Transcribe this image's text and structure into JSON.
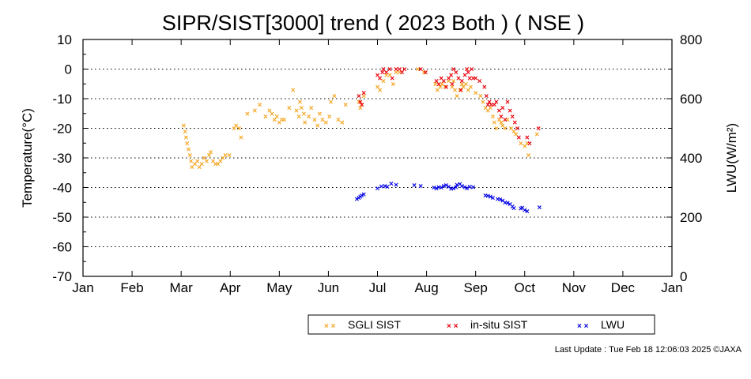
{
  "chart_data": {
    "type": "scatter",
    "title": "SIPR/SIST[3000] trend ( 2023 Both ) ( NSE )",
    "ylabel": "Temperature(°C)",
    "y2label": "LWU(W/m²)",
    "x_tick_labels": [
      "Jan",
      "Feb",
      "Mar",
      "Apr",
      "May",
      "Jun",
      "Jul",
      "Aug",
      "Sep",
      "Oct",
      "Nov",
      "Dec",
      "Jan"
    ],
    "x_unit": "month of year (0 = Jan 1)",
    "xlim": [
      0,
      12
    ],
    "ylim": [
      -70,
      10
    ],
    "y_ticks": [
      10,
      0,
      -10,
      -20,
      -30,
      -40,
      -50,
      -60,
      -70
    ],
    "y2lim": [
      0,
      800
    ],
    "y2_ticks": [
      800,
      600,
      400,
      200,
      0
    ],
    "grid": "horizontal dotted",
    "legend_placement": "bottom-center",
    "series": [
      {
        "name": "SGLI SIST",
        "axis": "left",
        "color": "#f5a623",
        "points": [
          [
            2.05,
            -19
          ],
          [
            2.08,
            -21
          ],
          [
            2.1,
            -23
          ],
          [
            2.12,
            -25
          ],
          [
            2.15,
            -27
          ],
          [
            2.18,
            -29
          ],
          [
            2.2,
            -31
          ],
          [
            2.22,
            -33
          ],
          [
            2.28,
            -32
          ],
          [
            2.33,
            -31
          ],
          [
            2.37,
            -33
          ],
          [
            2.42,
            -32
          ],
          [
            2.47,
            -30
          ],
          [
            2.52,
            -31
          ],
          [
            2.57,
            -29
          ],
          [
            2.6,
            -28
          ],
          [
            2.65,
            -31
          ],
          [
            2.7,
            -32
          ],
          [
            2.75,
            -32
          ],
          [
            2.8,
            -31
          ],
          [
            2.85,
            -30
          ],
          [
            2.9,
            -29
          ],
          [
            2.98,
            -29
          ],
          [
            3.08,
            -20
          ],
          [
            3.12,
            -19
          ],
          [
            3.18,
            -20
          ],
          [
            3.22,
            -23
          ],
          [
            3.35,
            -15
          ],
          [
            3.5,
            -14
          ],
          [
            3.6,
            -12
          ],
          [
            3.72,
            -16
          ],
          [
            3.8,
            -14
          ],
          [
            3.85,
            -15
          ],
          [
            3.9,
            -17
          ],
          [
            3.95,
            -16
          ],
          [
            4.0,
            -18
          ],
          [
            4.05,
            -17
          ],
          [
            4.1,
            -17
          ],
          [
            4.2,
            -13
          ],
          [
            4.28,
            -7
          ],
          [
            4.35,
            -14
          ],
          [
            4.4,
            -16
          ],
          [
            4.42,
            -11
          ],
          [
            4.45,
            -13
          ],
          [
            4.5,
            -15
          ],
          [
            4.52,
            -18
          ],
          [
            4.6,
            -16
          ],
          [
            4.65,
            -13
          ],
          [
            4.72,
            -17
          ],
          [
            4.78,
            -19
          ],
          [
            4.82,
            -15
          ],
          [
            4.88,
            -17
          ],
          [
            4.95,
            -18
          ],
          [
            5.02,
            -16
          ],
          [
            5.05,
            -11
          ],
          [
            5.12,
            -9
          ],
          [
            5.2,
            -17
          ],
          [
            5.28,
            -18
          ],
          [
            5.35,
            -12
          ],
          [
            5.62,
            -11
          ],
          [
            5.65,
            -13
          ],
          [
            5.68,
            -12
          ],
          [
            5.72,
            -9
          ],
          [
            6.0,
            -6
          ],
          [
            6.05,
            -7
          ],
          [
            6.12,
            -4
          ],
          [
            6.18,
            -2
          ],
          [
            6.25,
            -2
          ],
          [
            6.32,
            -5
          ],
          [
            6.38,
            -1
          ],
          [
            6.45,
            -1
          ],
          [
            6.82,
            0
          ],
          [
            6.95,
            -1
          ],
          [
            7.18,
            -5
          ],
          [
            7.22,
            -7
          ],
          [
            7.28,
            -6
          ],
          [
            7.32,
            -5
          ],
          [
            7.38,
            -6
          ],
          [
            7.45,
            -4
          ],
          [
            7.52,
            -6
          ],
          [
            7.55,
            -4
          ],
          [
            7.58,
            -7
          ],
          [
            7.62,
            -9
          ],
          [
            7.68,
            -7
          ],
          [
            7.72,
            -5
          ],
          [
            7.75,
            -6
          ],
          [
            7.8,
            -5
          ],
          [
            7.85,
            -7
          ],
          [
            7.9,
            -6
          ],
          [
            8.0,
            -8
          ],
          [
            8.1,
            -9
          ],
          [
            8.15,
            -11
          ],
          [
            8.2,
            -13
          ],
          [
            8.25,
            -14
          ],
          [
            8.3,
            -13
          ],
          [
            8.35,
            -16
          ],
          [
            8.38,
            -18
          ],
          [
            8.42,
            -20
          ],
          [
            8.48,
            -17
          ],
          [
            8.52,
            -18
          ],
          [
            8.55,
            -19
          ],
          [
            8.6,
            -20
          ],
          [
            8.65,
            -17
          ],
          [
            8.72,
            -20
          ],
          [
            8.78,
            -21
          ],
          [
            8.82,
            -22
          ],
          [
            8.92,
            -25
          ],
          [
            9.0,
            -26
          ],
          [
            9.05,
            -25
          ],
          [
            9.08,
            -29
          ],
          [
            9.25,
            -22
          ]
        ]
      },
      {
        "name": "in-situ SIST",
        "axis": "left",
        "color": "#e8000b",
        "points": [
          [
            5.62,
            -9
          ],
          [
            5.65,
            -11
          ],
          [
            5.68,
            -12
          ],
          [
            5.72,
            -8
          ],
          [
            6.0,
            -2
          ],
          [
            6.05,
            -3
          ],
          [
            6.1,
            -1
          ],
          [
            6.12,
            0
          ],
          [
            6.18,
            -1
          ],
          [
            6.25,
            0
          ],
          [
            6.3,
            -3
          ],
          [
            6.38,
            0
          ],
          [
            6.45,
            0
          ],
          [
            6.5,
            -1
          ],
          [
            6.55,
            0
          ],
          [
            6.88,
            0
          ],
          [
            6.98,
            -1
          ],
          [
            7.2,
            -4
          ],
          [
            7.25,
            -5
          ],
          [
            7.3,
            -3
          ],
          [
            7.35,
            -4
          ],
          [
            7.4,
            -6
          ],
          [
            7.45,
            -3
          ],
          [
            7.5,
            -2
          ],
          [
            7.52,
            -5
          ],
          [
            7.55,
            0
          ],
          [
            7.6,
            -1
          ],
          [
            7.65,
            -3
          ],
          [
            7.7,
            -7
          ],
          [
            7.72,
            -4
          ],
          [
            7.78,
            -2
          ],
          [
            7.82,
            0
          ],
          [
            7.85,
            -1
          ],
          [
            7.88,
            -3
          ],
          [
            7.92,
            0
          ],
          [
            7.95,
            -3
          ],
          [
            8.0,
            -3
          ],
          [
            8.08,
            -4
          ],
          [
            8.18,
            -6
          ],
          [
            8.22,
            -9
          ],
          [
            8.25,
            -12
          ],
          [
            8.28,
            -11
          ],
          [
            8.32,
            -12
          ],
          [
            8.38,
            -12
          ],
          [
            8.42,
            -11
          ],
          [
            8.48,
            -14
          ],
          [
            8.52,
            -16
          ],
          [
            8.55,
            -13
          ],
          [
            8.6,
            -17
          ],
          [
            8.65,
            -11
          ],
          [
            8.7,
            -14
          ],
          [
            8.75,
            -16
          ],
          [
            8.8,
            -18
          ],
          [
            8.85,
            -20
          ],
          [
            8.88,
            -23
          ],
          [
            9.05,
            -23
          ],
          [
            9.1,
            -25
          ],
          [
            9.28,
            -20
          ]
        ]
      },
      {
        "name": "LWU",
        "axis": "right",
        "color": "#0000e6",
        "points": [
          [
            5.58,
            262
          ],
          [
            5.62,
            265
          ],
          [
            5.65,
            270
          ],
          [
            5.68,
            274
          ],
          [
            5.72,
            278
          ],
          [
            6.0,
            298
          ],
          [
            6.08,
            304
          ],
          [
            6.15,
            306
          ],
          [
            6.2,
            303
          ],
          [
            6.28,
            314
          ],
          [
            6.38,
            310
          ],
          [
            6.75,
            308
          ],
          [
            6.88,
            306
          ],
          [
            7.15,
            300
          ],
          [
            7.2,
            298
          ],
          [
            7.25,
            302
          ],
          [
            7.3,
            300
          ],
          [
            7.35,
            305
          ],
          [
            7.4,
            308
          ],
          [
            7.45,
            303
          ],
          [
            7.5,
            296
          ],
          [
            7.55,
            298
          ],
          [
            7.6,
            302
          ],
          [
            7.62,
            310
          ],
          [
            7.68,
            312
          ],
          [
            7.72,
            306
          ],
          [
            7.78,
            302
          ],
          [
            7.82,
            298
          ],
          [
            7.88,
            303
          ],
          [
            7.95,
            302
          ],
          [
            8.2,
            274
          ],
          [
            8.25,
            272
          ],
          [
            8.3,
            270
          ],
          [
            8.35,
            266
          ],
          [
            8.45,
            262
          ],
          [
            8.5,
            260
          ],
          [
            8.55,
            256
          ],
          [
            8.6,
            250
          ],
          [
            8.65,
            248
          ],
          [
            8.7,
            244
          ],
          [
            8.75,
            236
          ],
          [
            8.78,
            231
          ],
          [
            8.92,
            230
          ],
          [
            8.95,
            232
          ],
          [
            9.0,
            224
          ],
          [
            9.05,
            220
          ],
          [
            9.3,
            234
          ]
        ]
      }
    ]
  },
  "legend": {
    "items": [
      {
        "label": "SGLI SIST",
        "color": "#f5a623"
      },
      {
        "label": "in-situ SIST",
        "color": "#e8000b"
      },
      {
        "label": "LWU",
        "color": "#0000e6"
      }
    ]
  },
  "footer": {
    "last_update": "Last Update : Tue Feb 18 12:06:03 2025  ©JAXA"
  },
  "mark_glyph": "×"
}
